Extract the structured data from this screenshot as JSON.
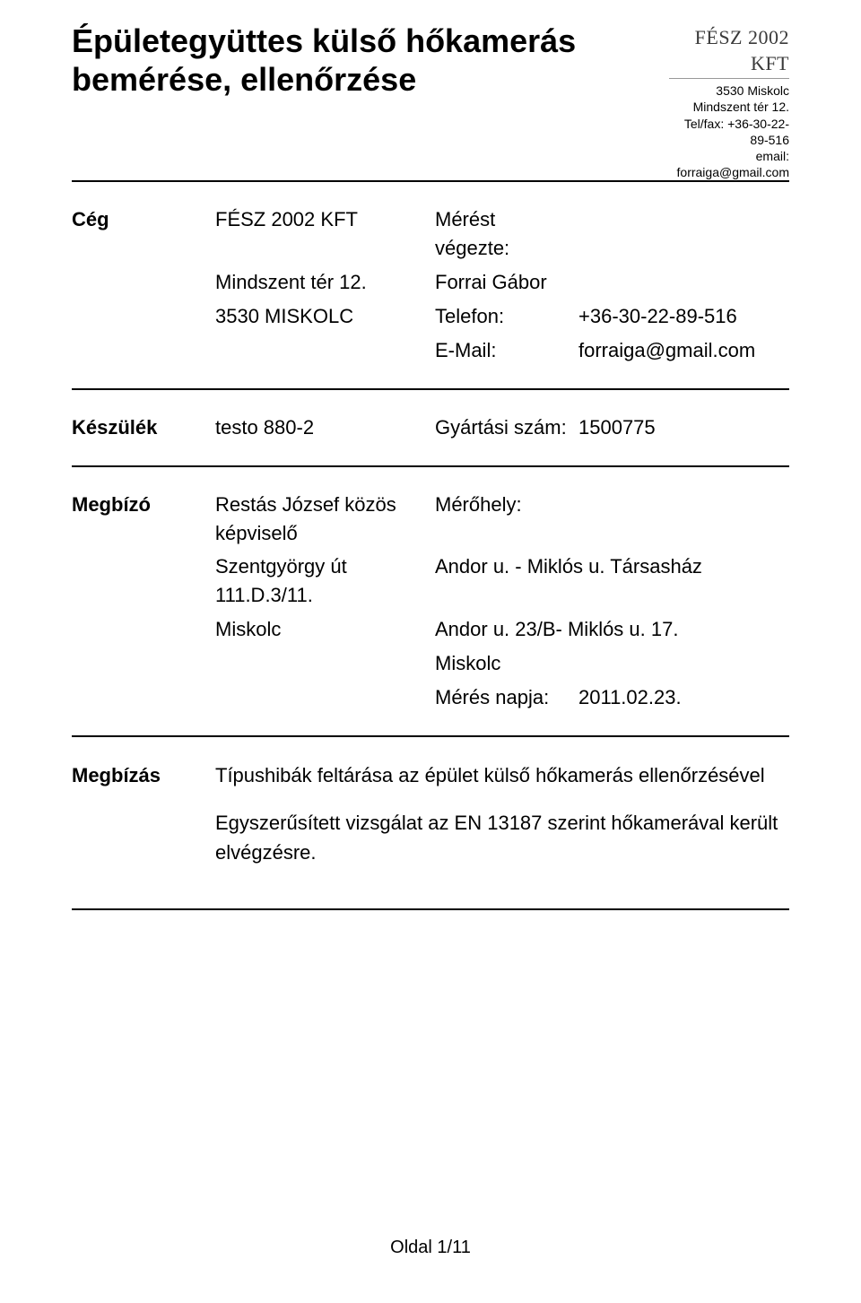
{
  "header": {
    "title": "Épületegyüttes külső hőkamerás bemérése, ellenőrzése",
    "company": {
      "name": "FÉSZ 2002 KFT",
      "address": "3530 Miskolc Mindszent tér 12.",
      "telfax_label": "Tel/fax:",
      "telfax": "+36-30-22-89-516",
      "email_label": "email:",
      "email": "forraiga@gmail.com"
    }
  },
  "company_section": {
    "label": "Cég",
    "name": "FÉSZ 2002 KFT",
    "addr1": "Mindszent tér 12.",
    "addr2": "3530 MISKOLC",
    "measured_by_label": "Mérést végezte:",
    "measured_by": "Forrai Gábor",
    "phone_label": "Telefon:",
    "phone": "+36-30-22-89-516",
    "email_label": "E-Mail:",
    "email": "forraiga@gmail.com"
  },
  "device_section": {
    "label": "Készülék",
    "device": "testo 880-2",
    "serial_label": "Gyártási szám:",
    "serial": "1500775"
  },
  "client_section": {
    "label": "Megbízó",
    "client": "Restás József közös képviselő",
    "addr1": "Szentgyörgy út 111.D.3/11.",
    "addr2": "Miskolc",
    "site_label": "Mérőhely:",
    "site1": "Andor u. - Miklós u. Társasház",
    "site2": "Andor u. 23/B- Miklós u. 17.",
    "site3": "Miskolc",
    "date_label": "Mérés napja:",
    "date": "2011.02.23."
  },
  "assignment_section": {
    "label": "Megbízás",
    "line1": "Típushibák feltárása az épület külső hőkamerás ellenőrzésével",
    "line2": "Egyszerűsített vizsgálat az EN 13187 szerint hőkamerával került elvégzésre."
  },
  "footer": {
    "page": "Oldal 1/11"
  }
}
